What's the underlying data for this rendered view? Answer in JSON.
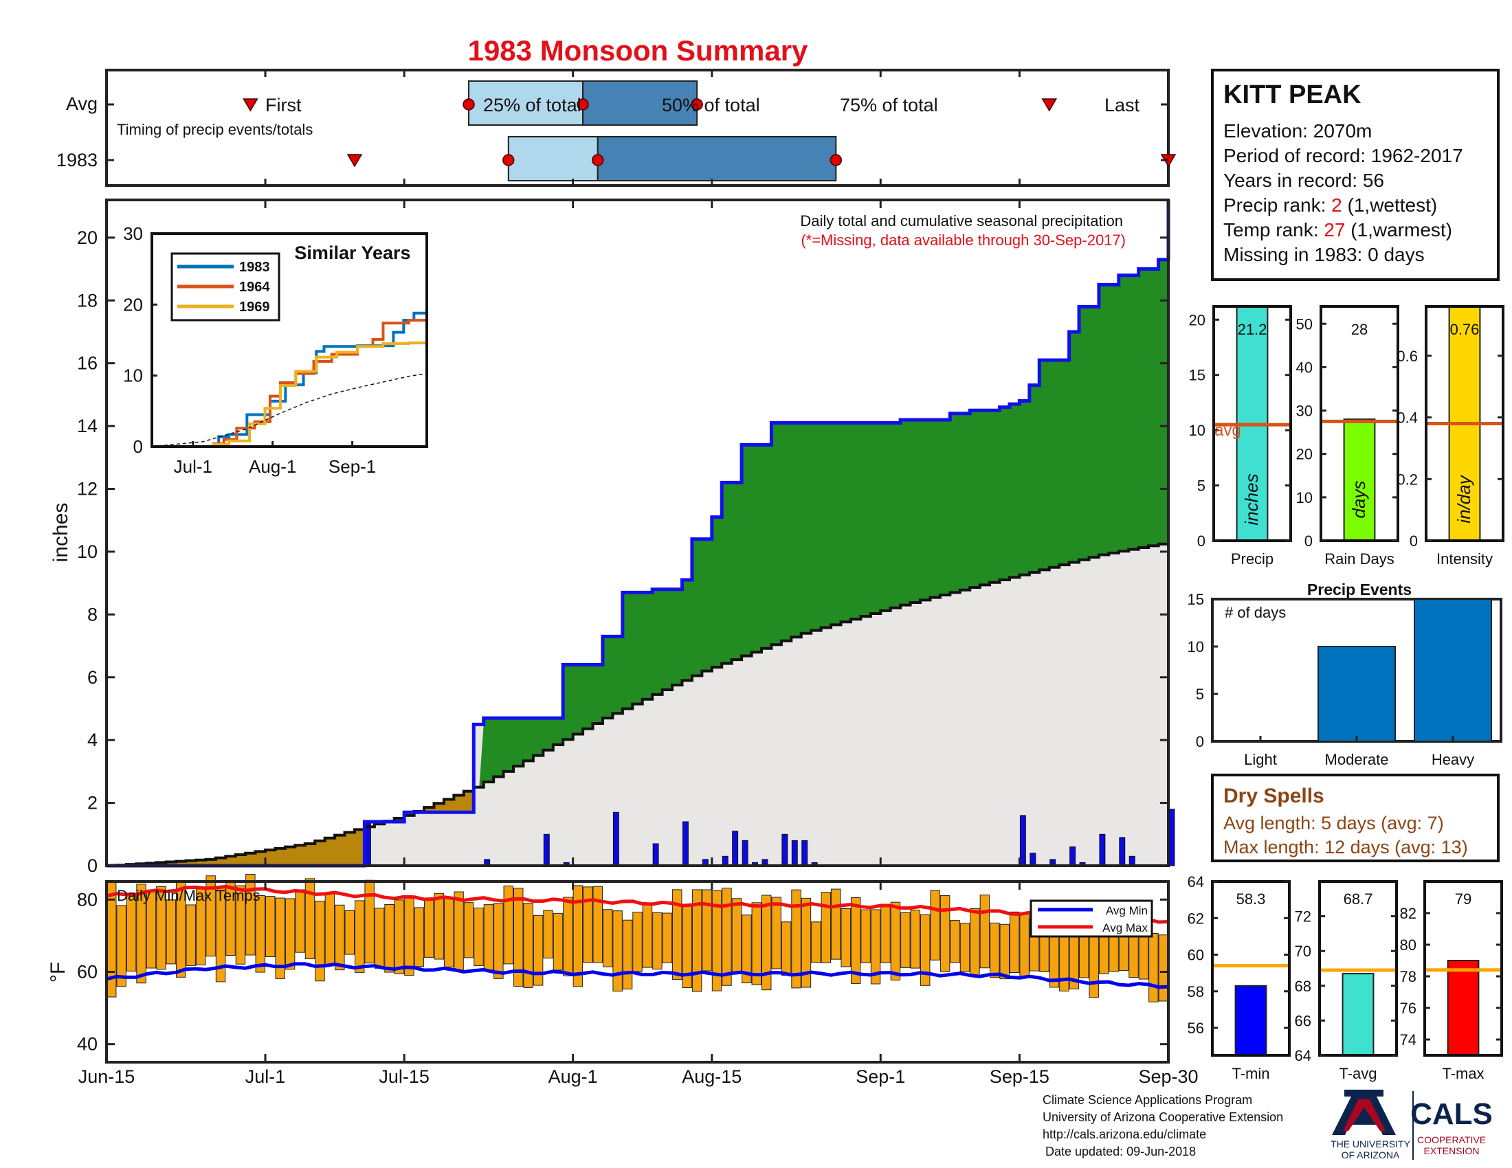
{
  "title": "1983 Monsoon Summary",
  "colors": {
    "title": "#e3101a",
    "highlight": "#e3101a",
    "green_area": "#228b22",
    "blue_line": "#1010ee",
    "brown_area": "#b8860b",
    "avg_area": "#e8e7e6",
    "bar_orange": "#f5a20f",
    "timing_light": "#b0d8ec",
    "timing_dark": "#4682b4",
    "dry_spell": "#8b4513",
    "avg_line": "#d95319"
  },
  "timing": {
    "row_labels": [
      "Avg",
      "1983"
    ],
    "note": "Timing of precip events/totals",
    "avg_labels": {
      "first": "First",
      "p25": "25% of total",
      "p50": "50% of total",
      "p75": "75% of total",
      "last": "Last"
    },
    "avg_days": {
      "first": 14.5,
      "p25": 36.5,
      "p50": 48,
      "p75": 59.5,
      "last": 95
    },
    "year_days": {
      "first": 25,
      "p25": 40.5,
      "p50": 49.5,
      "p75": 73.5,
      "last": 107
    }
  },
  "station": {
    "name": "KITT PEAK",
    "elevation": "Elevation: 2070m",
    "period": "Period of record: 1962-2017",
    "years": "Years in record: 56",
    "precip_rank_prefix": "Precip rank: ",
    "precip_rank": "2",
    "precip_rank_suffix": " (1,wettest)",
    "temp_rank_prefix": "Temp rank: ",
    "temp_rank": "27",
    "temp_rank_suffix": " (1,warmest)",
    "missing": "Missing in 1983: 0 days"
  },
  "main_panel": {
    "note_1": "Daily total and cumulative seasonal precipitation",
    "note_2": "(*=Missing, data available through 30-Sep-2017)",
    "ylabel": "inches"
  },
  "inset": {
    "title": "Similar Years",
    "legend": [
      "1983",
      "1964",
      "1969"
    ],
    "series_colors": [
      "#0072bd",
      "#d95319",
      "#edb120"
    ],
    "x_ticks": [
      "Jul-1",
      "Aug-1",
      "Sep-1"
    ],
    "y_ticks": [
      "0",
      "10",
      "20",
      "30"
    ]
  },
  "temp_panel": {
    "title": "Daily Min/Max Temps",
    "ylabel": "°F",
    "legend": [
      "Avg Min",
      "Avg Max"
    ]
  },
  "x_axis": {
    "ticks": [
      "Jun-15",
      "Jul-1",
      "Jul-15",
      "Aug-1",
      "Aug-15",
      "Sep-1",
      "Sep-15",
      "Sep-30"
    ]
  },
  "mini_bars": {
    "precip": {
      "label": "Precip",
      "unit": "inches",
      "value": 21.2,
      "value_text": "21.2",
      "avg": 10.5,
      "avg_text": "avg",
      "ylim": [
        0,
        21.2
      ],
      "ticks": [
        "0",
        "5",
        "10",
        "15",
        "20"
      ],
      "color": "#40e0d0"
    },
    "rain_days": {
      "label": "Rain Days",
      "unit": "days",
      "value": 28,
      "value_text": "28",
      "avg": 27.5,
      "ylim": [
        0,
        54
      ],
      "ticks": [
        "0",
        "10",
        "20",
        "30",
        "40",
        "50"
      ],
      "color": "#7cfc00"
    },
    "intensity": {
      "label": "Intensity",
      "unit": "in/day",
      "value": 0.76,
      "value_text": "0.76",
      "avg": 0.38,
      "ylim": [
        0,
        0.76
      ],
      "ticks": [
        "0",
        "0.2",
        "0.4",
        "0.6"
      ],
      "color": "#ffd700"
    }
  },
  "precip_events": {
    "title": "Precip Events",
    "note": "# of days",
    "categories": [
      "Light",
      "Moderate",
      "Heavy"
    ],
    "values": [
      0,
      10,
      15
    ],
    "ticks": [
      "0",
      "5",
      "10",
      "15"
    ],
    "color": "#0072bd"
  },
  "dry_spells": {
    "title": "Dry Spells",
    "avg_length": "Avg length: 5 days (avg: 7)",
    "max_length": "Max length: 12 days (avg: 13)"
  },
  "temp_bars": {
    "tmin": {
      "label": "T-min",
      "value": 58.3,
      "value_text": "58.3",
      "avg": 59.4,
      "ylim": [
        54.5,
        64
      ],
      "ticks": [
        "56",
        "58",
        "60",
        "62",
        "64"
      ],
      "color": "#0000ff"
    },
    "tavg": {
      "label": "T-avg",
      "value": 68.7,
      "value_text": "68.7",
      "avg": 68.9,
      "ylim": [
        64,
        74
      ],
      "ticks": [
        "64",
        "66",
        "68",
        "70",
        "72"
      ],
      "color": "#40e0d0"
    },
    "tmax": {
      "label": "T-max",
      "value": 79,
      "value_text": "79",
      "avg": 78.4,
      "ylim": [
        73,
        84
      ],
      "ticks": [
        "74",
        "76",
        "78",
        "80",
        "82"
      ],
      "color": "#ff0000"
    }
  },
  "footer": {
    "line1": "Climate Science Applications Program",
    "line2": "University of Arizona Cooperative Extension",
    "line3": "http://cals.arizona.edu/climate",
    "line4": "Date updated: 09-Jun-2018",
    "ua_line1": "THE UNIVERSITY",
    "ua_line2": "OF ARIZONA",
    "cals": "CALS",
    "cals_sub1": "COOPERATIVE",
    "cals_sub2": "EXTENSION"
  },
  "chart_data": [
    {
      "type": "area",
      "title": "",
      "ylabel": "inches",
      "x_label_ticks": [
        "Jun-15",
        "Jul-1",
        "Jul-15",
        "Aug-1",
        "Aug-15",
        "Sep-1",
        "Sep-15",
        "Sep-30"
      ],
      "xlim": [
        0,
        107
      ],
      "ylim": [
        0,
        21.2
      ],
      "y_ticks": [
        0,
        2,
        4,
        6,
        8,
        10,
        12,
        14,
        16,
        18,
        20
      ],
      "series": [
        {
          "name": "1983",
          "x": [
            0,
            26,
            30,
            37,
            38,
            46,
            50,
            52,
            55,
            58,
            59,
            61,
            62,
            64,
            67,
            70,
            80,
            85,
            87,
            90,
            91,
            92,
            93,
            94,
            97,
            98,
            100,
            102,
            104,
            106,
            107
          ],
          "values": [
            0,
            1.4,
            1.7,
            4.5,
            4.7,
            6.4,
            7.3,
            8.7,
            8.8,
            9.1,
            10.4,
            11.1,
            12.2,
            13.4,
            14.1,
            14.1,
            14.2,
            14.4,
            14.5,
            14.6,
            14.7,
            14.8,
            15.3,
            16.1,
            17.0,
            17.8,
            18.5,
            18.8,
            19.0,
            19.3,
            21.2
          ]
        },
        {
          "name": "Average",
          "x": [
            0,
            10,
            20,
            30,
            37,
            40,
            50,
            60,
            70,
            80,
            90,
            100,
            107
          ],
          "values": [
            0,
            0.2,
            0.7,
            1.6,
            2.5,
            3.0,
            4.7,
            6.2,
            7.4,
            8.3,
            9.1,
            9.9,
            10.3
          ]
        }
      ],
      "daily_precip": {
        "x": [
          26,
          38,
          44,
          46,
          51,
          55,
          58,
          60,
          62,
          63,
          64,
          65,
          66,
          68,
          69,
          70,
          71,
          92,
          93,
          95,
          97,
          98,
          100,
          102,
          103,
          107
        ],
        "values": [
          1.4,
          0.2,
          1.0,
          0.1,
          1.7,
          0.7,
          1.4,
          0.2,
          0.3,
          1.1,
          0.8,
          0.1,
          0.2,
          1.0,
          0.8,
          0.8,
          0.1,
          1.6,
          0.4,
          0.2,
          0.6,
          0.1,
          1.0,
          0.9,
          0.3,
          1.8
        ]
      }
    },
    {
      "type": "line",
      "title": "Similar Years",
      "x_label_ticks": [
        "Jul-1",
        "Aug-1",
        "Sep-1"
      ],
      "xlim": [
        0,
        107
      ],
      "ylim": [
        0,
        30
      ],
      "series": [
        {
          "name": "1983",
          "x": [
            0,
            26,
            30,
            37,
            46,
            52,
            59,
            64,
            67,
            80,
            94,
            98,
            102,
            107
          ],
          "values": [
            0,
            1.4,
            1.7,
            4.5,
            6.4,
            8.7,
            10.4,
            13.4,
            14.1,
            14.2,
            16.1,
            17.8,
            18.8,
            21.2
          ]
        },
        {
          "name": "1964",
          "x": [
            0,
            24,
            28,
            33,
            40,
            46,
            50,
            56,
            63,
            70,
            80,
            86,
            90,
            100,
            107
          ],
          "values": [
            0,
            0.4,
            1.0,
            2.6,
            3.5,
            7.1,
            9.0,
            10.3,
            12.0,
            13.0,
            14.1,
            15.1,
            17.4,
            17.8,
            17.9
          ]
        },
        {
          "name": "1969",
          "x": [
            0,
            24,
            30,
            38,
            44,
            50,
            56,
            64,
            72,
            80,
            90,
            100,
            107
          ],
          "values": [
            0,
            0.3,
            0.8,
            3.2,
            5.4,
            8.6,
            10.6,
            12.6,
            13.3,
            14.1,
            14.5,
            14.6,
            14.6
          ]
        },
        {
          "name": "Average",
          "x": [
            0,
            20,
            37,
            50,
            60,
            70,
            80,
            90,
            100,
            107
          ],
          "values": [
            0,
            0.7,
            2.5,
            4.7,
            6.2,
            7.4,
            8.3,
            9.1,
            9.9,
            10.3
          ]
        }
      ]
    },
    {
      "type": "bar",
      "title": "Daily Min/Max Temps",
      "ylabel": "°F",
      "xlim": [
        0,
        107
      ],
      "ylim": [
        35,
        85
      ],
      "y_ticks": [
        40,
        60,
        80
      ],
      "series": [
        {
          "name": "Avg Min",
          "x": [
            0,
            10,
            20,
            30,
            40,
            50,
            60,
            70,
            80,
            90,
            100,
            107
          ],
          "values": [
            58,
            61,
            62,
            61,
            60,
            59.5,
            59.5,
            59.5,
            59.5,
            59,
            57,
            56
          ]
        },
        {
          "name": "Avg Max",
          "x": [
            0,
            10,
            20,
            30,
            40,
            50,
            60,
            70,
            80,
            90,
            100,
            107
          ],
          "values": [
            81,
            83.5,
            82,
            80.5,
            80,
            79.5,
            78.5,
            78.5,
            78,
            76.5,
            75,
            74
          ]
        }
      ]
    },
    {
      "type": "bar",
      "title": "Precip Events",
      "categories": [
        "Light",
        "Moderate",
        "Heavy"
      ],
      "values": [
        0,
        10,
        15
      ],
      "ylim": [
        0,
        15
      ]
    },
    {
      "type": "bar",
      "categories": [
        "Precip",
        "Rain Days",
        "Intensity"
      ],
      "values": [
        21.2,
        28,
        0.76
      ],
      "averages": [
        10.5,
        27.5,
        0.38
      ]
    },
    {
      "type": "bar",
      "categories": [
        "T-min",
        "T-avg",
        "T-max"
      ],
      "values": [
        58.3,
        68.7,
        79
      ],
      "averages": [
        59.4,
        68.9,
        78.4
      ]
    }
  ]
}
